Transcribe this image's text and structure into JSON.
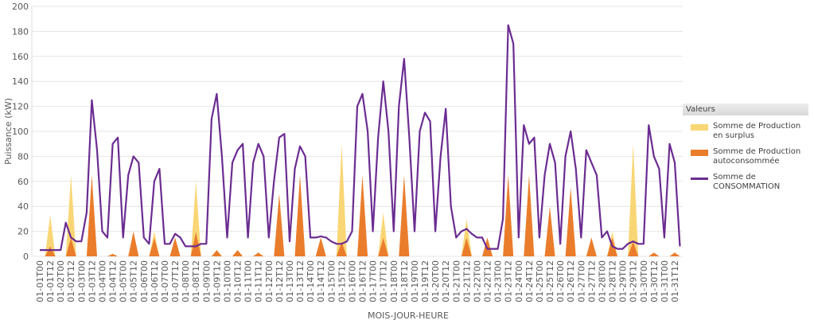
{
  "chart_data": {
    "type": "line",
    "stacked_areas": true,
    "y_label": "Puissance (kW)",
    "x_label": "MOIS-JOUR-HEURE",
    "legend_title": "Valeurs",
    "legend": "right",
    "grid": true,
    "ylim": [
      0,
      200
    ],
    "yticks": [
      0,
      20,
      40,
      60,
      80,
      100,
      120,
      140,
      160,
      180,
      200
    ],
    "categories": [
      "01-01T00",
      null,
      "01-01T12",
      null,
      "01-02T00",
      null,
      "01-02T12",
      null,
      "01-03T00",
      null,
      "01-03T12",
      null,
      "01-04T00",
      null,
      "01-04T12",
      null,
      "01-05T00",
      null,
      "01-05T12",
      null,
      "01-06T00",
      null,
      "01-06T12",
      null,
      "01-07T00",
      null,
      "01-07T12",
      null,
      "01-08T00",
      null,
      "01-08T12",
      null,
      "01-09T00",
      null,
      "01-09T12",
      null,
      "01-10T00",
      null,
      "01-10T12",
      null,
      "01-11T00",
      null,
      "01-11T12",
      null,
      "01-12T00",
      null,
      "01-12T12",
      null,
      "01-13T00",
      null,
      "01-13T12",
      null,
      "01-14T00",
      null,
      "01-14T12",
      null,
      "01-15T00",
      null,
      "01-15T12",
      null,
      "01-16T00",
      null,
      "01-16T12",
      null,
      "01-17T00",
      null,
      "01-17T12",
      null,
      "01-18T00",
      null,
      "01-18T12",
      null,
      "01-19T00",
      null,
      "01-19T12",
      null,
      "01-20T00",
      null,
      "01-20T12",
      null,
      "01-21T00",
      null,
      "01-21T12",
      null,
      "01-22T00",
      null,
      "01-22T12",
      null,
      "01-23T00",
      null,
      "01-23T12",
      null,
      "01-24T00",
      null,
      "01-24T12",
      null,
      "01-25T00",
      null,
      "01-25T12",
      null,
      "01-26T00",
      null,
      "01-26T12",
      null,
      "01-27T00",
      null,
      "01-27T12",
      null,
      "01-28T00",
      null,
      "01-28T12",
      null,
      "01-29T00",
      null,
      "01-29T12",
      null,
      "01-30T00",
      null,
      "01-30T12",
      null,
      "01-31T00",
      null,
      "01-31T12",
      null
    ],
    "series": [
      {
        "name": "Somme de Production en surplus",
        "kind": "area",
        "color": "#f9d675",
        "values": [
          0,
          0,
          25,
          0,
          0,
          0,
          50,
          0,
          0,
          0,
          0,
          0,
          0,
          0,
          0,
          0,
          0,
          0,
          0,
          0,
          0,
          0,
          5,
          0,
          0,
          0,
          0,
          0,
          0,
          0,
          40,
          0,
          0,
          0,
          0,
          0,
          0,
          0,
          0,
          0,
          0,
          0,
          0,
          0,
          0,
          0,
          0,
          0,
          0,
          0,
          0,
          0,
          0,
          0,
          0,
          0,
          0,
          0,
          78,
          0,
          0,
          0,
          0,
          0,
          0,
          0,
          20,
          0,
          0,
          0,
          0,
          0,
          0,
          0,
          0,
          0,
          0,
          0,
          0,
          0,
          0,
          0,
          15,
          0,
          0,
          0,
          0,
          0,
          0,
          0,
          0,
          0,
          0,
          0,
          0,
          0,
          0,
          0,
          0,
          0,
          0,
          0,
          0,
          0,
          0,
          0,
          0,
          0,
          0,
          0,
          5,
          0,
          0,
          0,
          78,
          0,
          0,
          0,
          0,
          0,
          0,
          0,
          0,
          0
        ]
      },
      {
        "name": "Somme de Production autoconsommée",
        "kind": "area",
        "color": "#ea7d2c",
        "values": [
          0,
          0,
          8,
          0,
          0,
          0,
          15,
          0,
          0,
          0,
          65,
          0,
          0,
          0,
          2,
          0,
          0,
          0,
          20,
          0,
          0,
          0,
          15,
          0,
          0,
          0,
          15,
          0,
          0,
          0,
          20,
          0,
          0,
          0,
          5,
          0,
          0,
          0,
          5,
          0,
          0,
          0,
          3,
          0,
          0,
          0,
          50,
          0,
          0,
          0,
          65,
          0,
          0,
          0,
          15,
          0,
          0,
          0,
          12,
          0,
          0,
          0,
          65,
          0,
          0,
          0,
          15,
          0,
          0,
          0,
          65,
          0,
          0,
          0,
          0,
          0,
          0,
          0,
          0,
          0,
          0,
          0,
          15,
          0,
          0,
          0,
          15,
          0,
          0,
          0,
          65,
          0,
          0,
          0,
          65,
          0,
          0,
          0,
          40,
          0,
          0,
          0,
          55,
          0,
          0,
          0,
          15,
          0,
          0,
          0,
          15,
          0,
          0,
          0,
          12,
          0,
          0,
          0,
          3,
          0,
          0,
          0,
          3,
          0
        ]
      },
      {
        "name": "Somme de CONSOMMATION",
        "kind": "line",
        "color": "#6b2c91",
        "values": [
          5,
          5,
          5,
          5,
          5,
          27,
          15,
          12,
          12,
          35,
          125,
          85,
          20,
          15,
          90,
          95,
          15,
          65,
          80,
          75,
          15,
          10,
          60,
          70,
          10,
          10,
          18,
          15,
          8,
          8,
          8,
          10,
          10,
          110,
          130,
          80,
          15,
          75,
          85,
          90,
          15,
          75,
          90,
          80,
          15,
          60,
          95,
          98,
          12,
          70,
          88,
          80,
          15,
          15,
          16,
          15,
          12,
          10,
          10,
          12,
          20,
          120,
          130,
          100,
          20,
          95,
          140,
          100,
          20,
          120,
          158,
          95,
          20,
          100,
          115,
          108,
          20,
          80,
          118,
          40,
          15,
          20,
          22,
          18,
          15,
          15,
          6,
          6,
          6,
          30,
          185,
          170,
          15,
          105,
          90,
          95,
          15,
          65,
          90,
          75,
          10,
          80,
          100,
          70,
          15,
          85,
          75,
          65,
          15,
          20,
          8,
          6,
          6,
          10,
          12,
          10,
          10,
          105,
          80,
          70,
          15,
          90,
          75,
          8
        ]
      }
    ]
  }
}
